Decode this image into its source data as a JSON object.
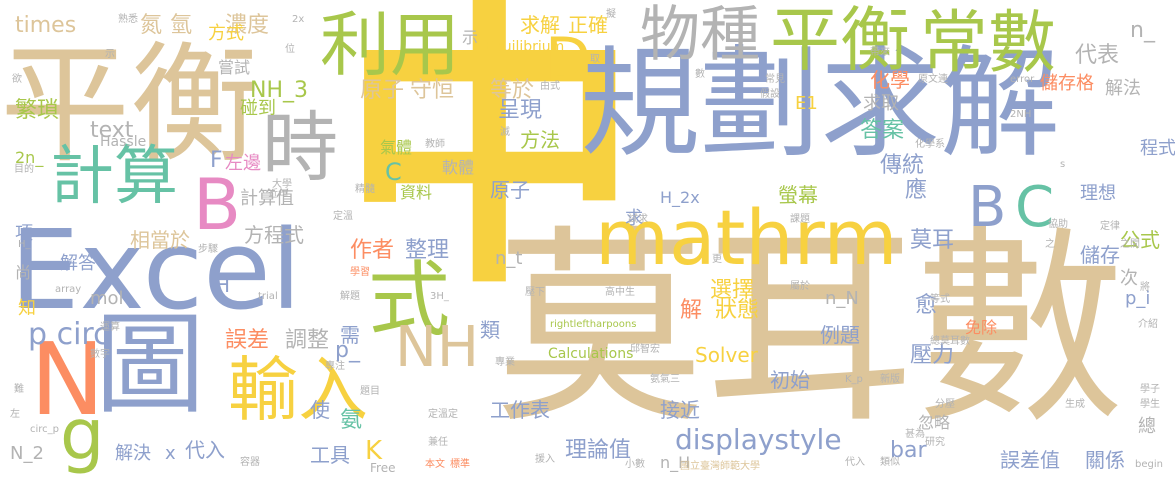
{
  "palette": {
    "tan": "#ddc59a",
    "blue": "#8ea0cc",
    "green": "#a8c74b",
    "yellow": "#f7d140",
    "teal": "#66c2a5",
    "orange": "#fc8d62",
    "pink": "#e78ac3",
    "gray": "#b3b3b3"
  },
  "words": [
    {
      "text": "中",
      "color": "#f7d140"
    },
    {
      "text": "莫耳數",
      "color": "#ddc59a"
    },
    {
      "text": "平衡",
      "color": "#ddc59a"
    },
    {
      "text": "規劃求解",
      "color": "#8ea0cc"
    },
    {
      "text": "Excel",
      "color": "#8ea0cc"
    },
    {
      "text": "mathrm",
      "color": "#f7d140"
    },
    {
      "text": "圖",
      "color": "#8ea0cc"
    },
    {
      "text": "利用",
      "color": "#a8c74b"
    },
    {
      "text": "物種",
      "color": "#b3b3b3"
    },
    {
      "text": "平衡",
      "color": "#a8c74b"
    },
    {
      "text": "常數",
      "color": "#a8c74b"
    },
    {
      "text": "時",
      "color": "#b3b3b3"
    },
    {
      "text": "計算",
      "color": "#66c2a5"
    },
    {
      "text": "式",
      "color": "#a8c74b"
    },
    {
      "text": "輸入",
      "color": "#f7d140"
    },
    {
      "text": "NH",
      "color": "#ddc59a"
    },
    {
      "text": "N",
      "color": "#fc8d62"
    },
    {
      "text": "g",
      "color": "#a8c74b"
    },
    {
      "text": "B",
      "color": "#e78ac3"
    },
    {
      "text": "C",
      "color": "#66c2a5"
    },
    {
      "text": "B",
      "color": "#8ea0cc"
    },
    {
      "text": "D",
      "color": "#f7d140"
    },
    {
      "text": "displaystyle",
      "color": "#8ea0cc"
    },
    {
      "text": "作者",
      "color": "#fc8d62"
    },
    {
      "text": "整理",
      "color": "#8ea0cc"
    },
    {
      "text": "times",
      "color": "#ddc59a"
    },
    {
      "text": "氮",
      "color": "#ddc59a"
    },
    {
      "text": "氫",
      "color": "#ddc59a"
    },
    {
      "text": "濃度",
      "color": "#ddc59a"
    },
    {
      "text": "方式",
      "color": "#f7d140"
    },
    {
      "text": "代表",
      "color": "#b3b3b3"
    },
    {
      "text": "n_",
      "color": "#b3b3b3"
    },
    {
      "text": "NH_3",
      "color": "#a8c74b"
    },
    {
      "text": "原子",
      "color": "#ddc59a"
    },
    {
      "text": "守恒",
      "color": "#ddc59a"
    },
    {
      "text": "等於",
      "color": "#ddc59a"
    },
    {
      "text": "呈現",
      "color": "#8ea0cc"
    },
    {
      "text": "繁瑣",
      "color": "#a8c74b"
    },
    {
      "text": "text",
      "color": "#b3b3b3"
    },
    {
      "text": "碰到",
      "color": "#a8c74b"
    },
    {
      "text": "方法",
      "color": "#a8c74b"
    },
    {
      "text": "氣體",
      "color": "#a8c74b"
    },
    {
      "text": "軟體",
      "color": "#b3b3b3"
    },
    {
      "text": "資料",
      "color": "#a8c74b"
    },
    {
      "text": "原子",
      "color": "#8ea0cc"
    },
    {
      "text": "左邊",
      "color": "#e78ac3"
    },
    {
      "text": "F",
      "color": "#8ea0cc"
    },
    {
      "text": "計算值",
      "color": "#b3b3b3"
    },
    {
      "text": "相當於",
      "color": "#ddc59a"
    },
    {
      "text": "方程式",
      "color": "#b3b3b3"
    },
    {
      "text": "p circ",
      "color": "#8ea0cc"
    },
    {
      "text": "誤差",
      "color": "#fc8d62"
    },
    {
      "text": "調整",
      "color": "#b3b3b3"
    },
    {
      "text": "p_",
      "color": "#8ea0cc"
    },
    {
      "text": "代入",
      "color": "#8ea0cc"
    },
    {
      "text": "理論值",
      "color": "#8ea0cc"
    },
    {
      "text": "工作表",
      "color": "#8ea0cc"
    },
    {
      "text": "接近",
      "color": "#8ea0cc"
    },
    {
      "text": "初始",
      "color": "#8ea0cc"
    },
    {
      "text": "例題",
      "color": "#8ea0cc"
    },
    {
      "text": "壓力",
      "color": "#8ea0cc"
    },
    {
      "text": "選擇",
      "color": "#f7d140"
    },
    {
      "text": "狀態",
      "color": "#f7d140"
    },
    {
      "text": "解",
      "color": "#fc8d62"
    },
    {
      "text": "Solver",
      "color": "#f7d140"
    },
    {
      "text": "答案",
      "color": "#66c2a5"
    },
    {
      "text": "求取",
      "color": "#b3b3b3"
    },
    {
      "text": "化學",
      "color": "#fc8d62"
    },
    {
      "text": "傳統",
      "color": "#8ea0cc"
    },
    {
      "text": "應",
      "color": "#8ea0cc"
    },
    {
      "text": "螢幕",
      "color": "#a8c74b"
    },
    {
      "text": "莫耳",
      "color": "#8ea0cc"
    },
    {
      "text": "求",
      "color": "#8ea0cc"
    },
    {
      "text": "公式",
      "color": "#a8c74b"
    },
    {
      "text": "儲存",
      "color": "#8ea0cc"
    },
    {
      "text": "理想",
      "color": "#8ea0cc"
    },
    {
      "text": "程式",
      "color": "#8ea0cc"
    },
    {
      "text": "解法",
      "color": "#b3b3b3"
    },
    {
      "text": "儲存格",
      "color": "#fc8d62"
    },
    {
      "text": "E1",
      "color": "#f7d140"
    },
    {
      "text": "正確",
      "color": "#f7d140"
    },
    {
      "text": "求解",
      "color": "#f7d140"
    },
    {
      "text": "Equilibrium",
      "color": "#f7d140"
    },
    {
      "text": "愈",
      "color": "#8ea0cc"
    },
    {
      "text": "忽略",
      "color": "#b3b3b3"
    },
    {
      "text": "免除",
      "color": "#fc8d62"
    },
    {
      "text": "關係",
      "color": "#8ea0cc"
    },
    {
      "text": "誤差值",
      "color": "#8ea0cc"
    },
    {
      "text": "bar",
      "color": "#8ea0cc"
    },
    {
      "text": "n_H",
      "color": "#b3b3b3"
    },
    {
      "text": "n_N",
      "color": "#b3b3b3"
    },
    {
      "text": "n_t",
      "color": "#b3b3b3"
    },
    {
      "text": "H_2x",
      "color": "#8ea0cc"
    },
    {
      "text": "工具",
      "color": "#8ea0cc"
    },
    {
      "text": "使",
      "color": "#8ea0cc"
    },
    {
      "text": "氨",
      "color": "#66c2a5"
    },
    {
      "text": "K",
      "color": "#f7d140"
    },
    {
      "text": "解決",
      "color": "#8ea0cc"
    },
    {
      "text": "x",
      "color": "#8ea0cc"
    },
    {
      "text": "N_2",
      "color": "#b3b3b3"
    },
    {
      "text": "H",
      "color": "#8ea0cc"
    },
    {
      "text": "mol",
      "color": "#b3b3b3"
    },
    {
      "text": "解答",
      "color": "#8ea0cc"
    },
    {
      "text": "項",
      "color": "#8ea0cc"
    },
    {
      "text": "知",
      "color": "#f7d140"
    },
    {
      "text": "尚",
      "color": "#b3b3b3"
    },
    {
      "text": "2n_",
      "color": "#a8c74b"
    },
    {
      "text": "Hassle",
      "color": "#b3b3b3"
    },
    {
      "text": "嘗試",
      "color": "#b3b3b3"
    },
    {
      "text": "示",
      "color": "#b3b3b3"
    },
    {
      "text": "類",
      "color": "#8ea0cc"
    },
    {
      "text": "需",
      "color": "#8ea0cc"
    },
    {
      "text": "次",
      "color": "#b3b3b3"
    },
    {
      "text": "p_i",
      "color": "#8ea0cc"
    },
    {
      "text": "C",
      "color": "#66c2a5"
    },
    {
      "text": "Calculations",
      "color": "#a8c74b"
    },
    {
      "text": "rightleftharpoons",
      "color": "#a8c74b"
    },
    {
      "text": "國立臺灣師範大學",
      "color": "#ddc59a"
    },
    {
      "text": "Free",
      "color": "#b3b3b3"
    },
    {
      "text": "本文",
      "color": "#fc8d62"
    },
    {
      "text": "標準",
      "color": "#fc8d62"
    },
    {
      "text": "兼任",
      "color": "#b3b3b3"
    },
    {
      "text": "定溫定",
      "color": "#b3b3b3"
    },
    {
      "text": "題目",
      "color": "#b3b3b3"
    },
    {
      "text": "專注",
      "color": "#b3b3b3"
    },
    {
      "text": "氨氣三",
      "color": "#b3b3b3"
    },
    {
      "text": "專業",
      "color": "#b3b3b3"
    },
    {
      "text": "邱智宏",
      "color": "#b3b3b3"
    },
    {
      "text": "高中生",
      "color": "#b3b3b3"
    },
    {
      "text": "屬於",
      "color": "#b3b3b3"
    },
    {
      "text": "壓下",
      "color": "#b3b3b3"
    },
    {
      "text": "學習",
      "color": "#fc8d62"
    },
    {
      "text": "解題",
      "color": "#b3b3b3"
    },
    {
      "text": "3H_",
      "color": "#b3b3b3"
    },
    {
      "text": "trial",
      "color": "#b3b3b3"
    },
    {
      "text": "步驟",
      "color": "#b3b3b3"
    },
    {
      "text": "定溫",
      "color": "#b3b3b3"
    },
    {
      "text": "精髓",
      "color": "#b3b3b3"
    },
    {
      "text": "教師",
      "color": "#b3b3b3"
    },
    {
      "text": "大學",
      "color": "#b3b3b3"
    },
    {
      "text": "近年",
      "color": "#b3b3b3"
    },
    {
      "text": "熟悉",
      "color": "#b3b3b3"
    },
    {
      "text": "擬",
      "color": "#b3b3b3"
    },
    {
      "text": "取",
      "color": "#b3b3b3"
    },
    {
      "text": "由式",
      "color": "#b3b3b3"
    },
    {
      "text": "常見",
      "color": "#b3b3b3"
    },
    {
      "text": "假設",
      "color": "#b3b3b3"
    },
    {
      "text": "帶來",
      "color": "#b3b3b3"
    },
    {
      "text": "原文連",
      "color": "#b3b3b3"
    },
    {
      "text": "化學系",
      "color": "#b3b3b3"
    },
    {
      "text": "error",
      "color": "#b3b3b3"
    },
    {
      "text": "2NH",
      "color": "#b3b3b3"
    },
    {
      "text": "課題",
      "color": "#b3b3b3"
    },
    {
      "text": "協助",
      "color": "#b3b3b3"
    },
    {
      "text": "定律",
      "color": "#b3b3b3"
    },
    {
      "text": "之間",
      "color": "#b3b3b3"
    },
    {
      "text": "等式",
      "color": "#b3b3b3"
    },
    {
      "text": "介紹",
      "color": "#b3b3b3"
    },
    {
      "text": "學子",
      "color": "#b3b3b3"
    },
    {
      "text": "總",
      "color": "#b3b3b3"
    },
    {
      "text": "學生",
      "color": "#b3b3b3"
    },
    {
      "text": "begin",
      "color": "#b3b3b3"
    },
    {
      "text": "生成",
      "color": "#b3b3b3"
    },
    {
      "text": "分壓",
      "color": "#b3b3b3"
    },
    {
      "text": "甚為",
      "color": "#b3b3b3"
    },
    {
      "text": "研究",
      "color": "#b3b3b3"
    },
    {
      "text": "類似",
      "color": "#b3b3b3"
    },
    {
      "text": "代入",
      "color": "#b3b3b3"
    },
    {
      "text": "新版",
      "color": "#b3b3b3"
    },
    {
      "text": "K_p",
      "color": "#b3b3b3"
    },
    {
      "text": "小數",
      "color": "#b3b3b3"
    },
    {
      "text": "援入",
      "color": "#b3b3b3"
    },
    {
      "text": "容器",
      "color": "#b3b3b3"
    },
    {
      "text": "數字",
      "color": "#b3b3b3"
    },
    {
      "text": "circ_p",
      "color": "#b3b3b3"
    },
    {
      "text": "運算",
      "color": "#b3b3b3"
    },
    {
      "text": "array",
      "color": "#b3b3b3"
    },
    {
      "text": "H_",
      "color": "#b3b3b3"
    },
    {
      "text": "目的",
      "color": "#b3b3b3"
    },
    {
      "text": "欲",
      "color": "#b3b3b3"
    },
    {
      "text": "難",
      "color": "#b3b3b3"
    },
    {
      "text": "左",
      "color": "#b3b3b3"
    },
    {
      "text": "示",
      "color": "#b3b3b3"
    },
    {
      "text": "位",
      "color": "#b3b3b3"
    },
    {
      "text": "數",
      "color": "#b3b3b3"
    },
    {
      "text": "2x",
      "color": "#b3b3b3"
    },
    {
      "text": "更",
      "color": "#b3b3b3"
    },
    {
      "text": "滅",
      "color": "#b3b3b3"
    },
    {
      "text": "s",
      "color": "#b3b3b3"
    },
    {
      "text": "將",
      "color": "#b3b3b3"
    },
    {
      "text": "總莫耳數",
      "color": "#b3b3b3"
    },
    {
      "text": "試求",
      "color": "#b3b3b3"
    },
    {
      "text": "之",
      "color": "#b3b3b3"
    },
    {
      "text": "定溫",
      "color": "#b3b3b3"
    }
  ]
}
